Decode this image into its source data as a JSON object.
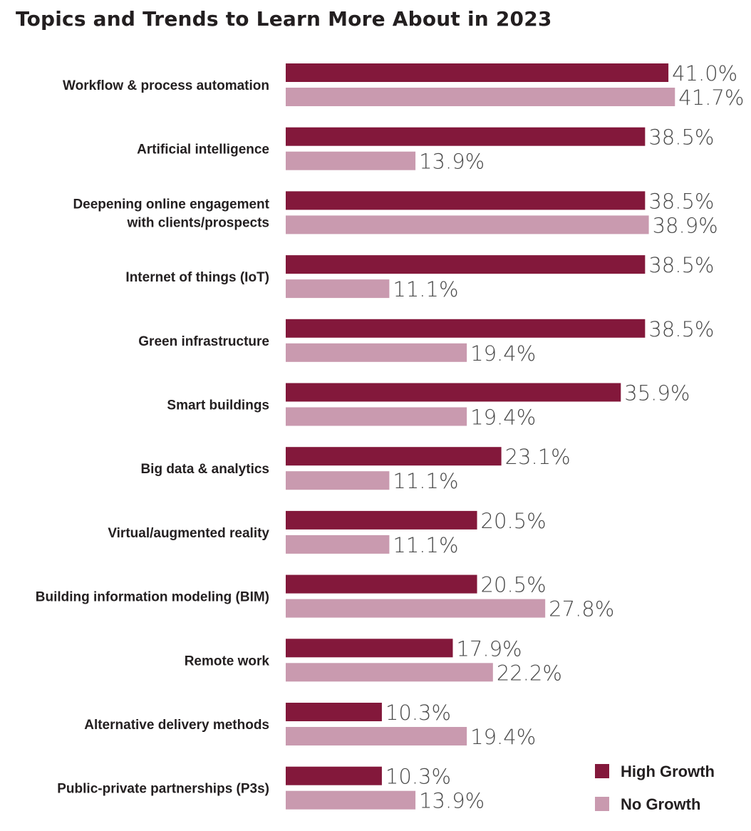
{
  "chart_data": {
    "type": "bar",
    "orientation": "horizontal",
    "title": "Topics and Trends to Learn More About in 2023",
    "categories": [
      [
        "Workflow & process automation"
      ],
      [
        "Artificial intelligence"
      ],
      [
        "Deepening online engagement",
        "with clients/prospects"
      ],
      [
        "Internet of things (IoT)"
      ],
      [
        "Green infrastructure"
      ],
      [
        "Smart buildings"
      ],
      [
        "Big data & analytics"
      ],
      [
        "Virtual/augmented reality"
      ],
      [
        "Building information modeling (BIM)"
      ],
      [
        "Remote work"
      ],
      [
        "Alternative delivery methods"
      ],
      [
        "Public-private partnerships (P3s)"
      ]
    ],
    "series": [
      {
        "name": "High Growth",
        "color": "#83183b",
        "values": [
          41.0,
          38.5,
          38.5,
          38.5,
          38.5,
          35.9,
          23.1,
          20.5,
          20.5,
          17.9,
          10.3,
          10.3
        ]
      },
      {
        "name": "No Growth",
        "color": "#c99aaf",
        "values": [
          41.7,
          13.9,
          38.9,
          11.1,
          19.4,
          19.4,
          11.1,
          11.1,
          27.8,
          22.2,
          19.4,
          13.9
        ]
      }
    ],
    "value_format": "%",
    "legend_position": "bottom-right",
    "grid": false
  }
}
